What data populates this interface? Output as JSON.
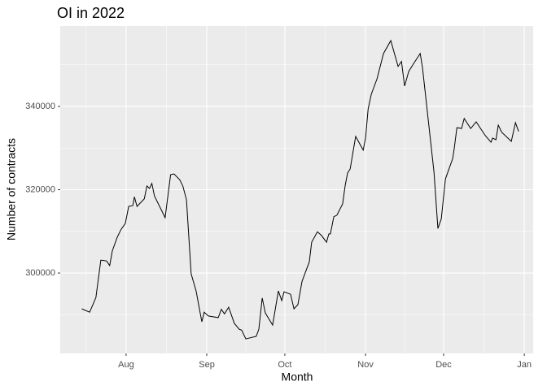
{
  "chart_data": {
    "type": "line",
    "title": "OI in 2022",
    "x_label": "Month",
    "y_label": "Number of contracts",
    "grid": true,
    "xlim": [
      187.7,
      369.4
    ],
    "xticks": [
      {
        "value": 213,
        "label": "Aug"
      },
      {
        "value": 244,
        "label": "Sep"
      },
      {
        "value": 274,
        "label": "Oct"
      },
      {
        "value": 305,
        "label": "Nov"
      },
      {
        "value": 335,
        "label": "Dec"
      },
      {
        "value": 366,
        "label": "Jan"
      }
    ],
    "ylim": [
      280700,
      359300
    ],
    "yticks": [
      300000,
      320000,
      340000
    ],
    "x": [
      196,
      199,
      201.4,
      203.3,
      205.5,
      206.7,
      207.7,
      209.6,
      211.1,
      212.7,
      214,
      215.6,
      216.2,
      217.2,
      220,
      221,
      222,
      222.9,
      223.9,
      228,
      230.1,
      231.4,
      233.6,
      234.8,
      236.2,
      238,
      239.9,
      242.1,
      243,
      244.6,
      248.4,
      249.6,
      250.8,
      252.4,
      254.6,
      256.5,
      257.4,
      259,
      263,
      264,
      265.3,
      266.5,
      269.3,
      271.5,
      272.8,
      273.7,
      276.2,
      277.5,
      279,
      280.6,
      282.5,
      283.4,
      284.3,
      286.5,
      288.1,
      290,
      290.9,
      291.5,
      292.8,
      294,
      296.2,
      297.2,
      298.1,
      299.1,
      301.2,
      304.1,
      305,
      306,
      307.2,
      309.4,
      311.9,
      314.7,
      317.5,
      318.8,
      320,
      321.6,
      323.5,
      326,
      326.9,
      331.3,
      332.8,
      334.1,
      335.7,
      338.5,
      339.1,
      340.1,
      341.9,
      342.9,
      345.4,
      347.5,
      351,
      353.2,
      353.8,
      355.1,
      356,
      357.3,
      361,
      362.6,
      363.8
    ],
    "series": [
      {
        "name": "OI",
        "color": "#000000",
        "values": [
          291400,
          290600,
          294100,
          303100,
          302900,
          301800,
          305300,
          308600,
          310500,
          311900,
          316000,
          316200,
          318300,
          316000,
          317800,
          320900,
          320300,
          321500,
          318500,
          313300,
          323600,
          323800,
          322400,
          320900,
          317600,
          299800,
          295700,
          288300,
          290600,
          289700,
          289300,
          291300,
          290200,
          291800,
          287900,
          286500,
          286300,
          284200,
          284800,
          286500,
          294000,
          290400,
          287500,
          295700,
          293400,
          295500,
          294900,
          291400,
          292400,
          298000,
          301200,
          302700,
          307400,
          309900,
          309000,
          307400,
          309400,
          309400,
          313500,
          313900,
          316600,
          321100,
          324000,
          325000,
          332800,
          329500,
          332400,
          339400,
          342900,
          346600,
          352700,
          355800,
          349600,
          350800,
          344900,
          348400,
          350300,
          352700,
          349200,
          324200,
          310700,
          313000,
          322600,
          327500,
          330000,
          334900,
          334700,
          337100,
          334700,
          336300,
          333000,
          331400,
          332400,
          332000,
          335500,
          333800,
          331600,
          336100,
          334000
        ]
      }
    ]
  }
}
